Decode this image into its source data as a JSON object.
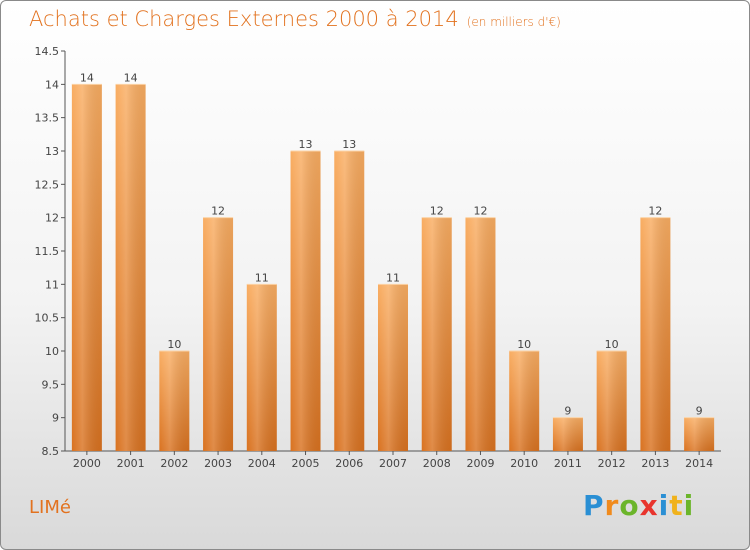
{
  "header": {
    "title": "Achats et Charges Externes 2000 à 2014",
    "subtitle": "(en milliers d'€)"
  },
  "footer": {
    "commune": "LIMé",
    "logo": "Proxiti"
  },
  "colors": {
    "accent": "#e2721f",
    "bar_light": "#f7a85a",
    "bar_dark": "#dd7621"
  },
  "chart_data": {
    "type": "bar",
    "title": "Achats et Charges Externes 2000 à 2014",
    "subtitle": "(en milliers d'€)",
    "categories": [
      "2000",
      "2001",
      "2002",
      "2003",
      "2004",
      "2005",
      "2006",
      "2007",
      "2008",
      "2009",
      "2010",
      "2011",
      "2012",
      "2013",
      "2014"
    ],
    "values": [
      14,
      14,
      10,
      12,
      11,
      13,
      13,
      11,
      12,
      12,
      10,
      9,
      10,
      12,
      9
    ],
    "data_labels": [
      "14",
      "14",
      "10",
      "12",
      "11",
      "13",
      "13",
      "11",
      "12",
      "12",
      "10",
      "9",
      "10",
      "12",
      "9"
    ],
    "yticks": [
      "8.5",
      "9",
      "9.5",
      "10",
      "10.5",
      "11",
      "11.5",
      "12",
      "12.5",
      "13",
      "13.5",
      "14",
      "14.5"
    ],
    "ylim": [
      8.5,
      14.5
    ],
    "grid": false,
    "legend": "none"
  }
}
